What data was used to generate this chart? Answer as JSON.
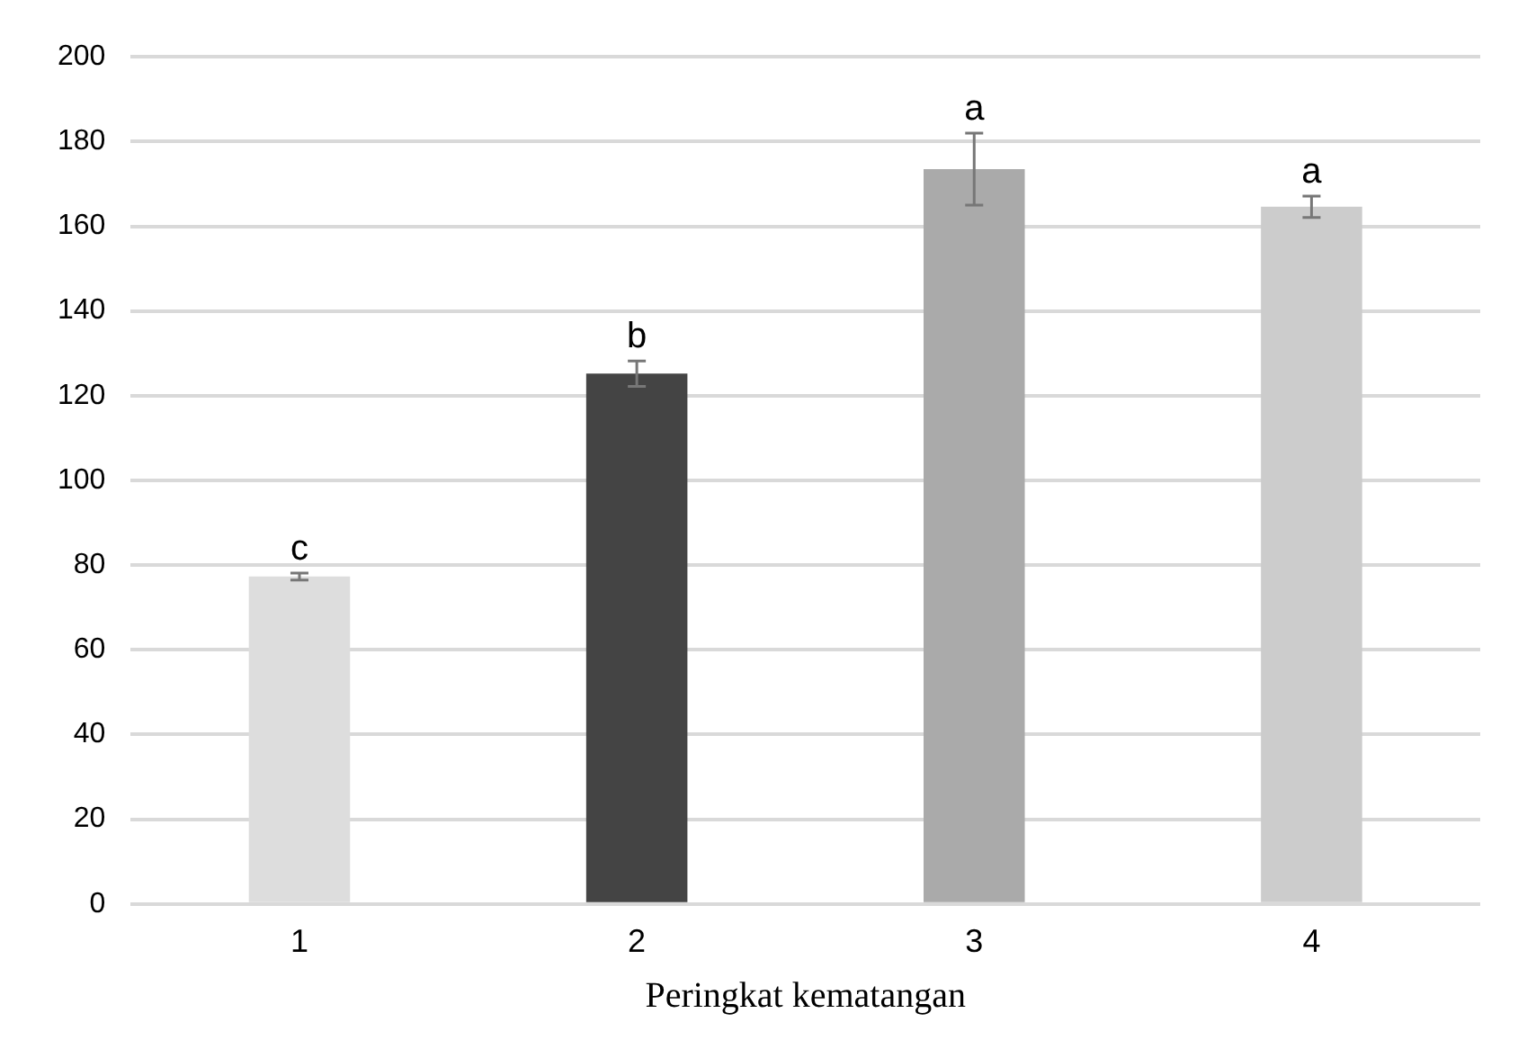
{
  "chart_data": {
    "type": "bar",
    "xlabel": "Peringkat kematangan",
    "categories": [
      "1",
      "2",
      "3",
      "4"
    ],
    "values": [
      77.3,
      125.2,
      173.5,
      164.6
    ],
    "errors": [
      0.8,
      3,
      8.5,
      2.5
    ],
    "colors": [
      "#dddddd",
      "#444444",
      "#aaaaaa",
      "#cccccc"
    ],
    "annotations": [
      {
        "text": "c",
        "x": "1",
        "y": 78.1
      },
      {
        "text": "b",
        "x": "2",
        "y": 128.2
      },
      {
        "text": "a",
        "x": "3",
        "y": 182
      },
      {
        "text": "a",
        "x": "4",
        "y": 167.1
      }
    ],
    "ylim": [
      0,
      200
    ],
    "yticks": [
      0,
      20,
      40,
      60,
      80,
      100,
      120,
      140,
      160,
      180,
      200
    ],
    "grid": "y",
    "legend": false
  }
}
